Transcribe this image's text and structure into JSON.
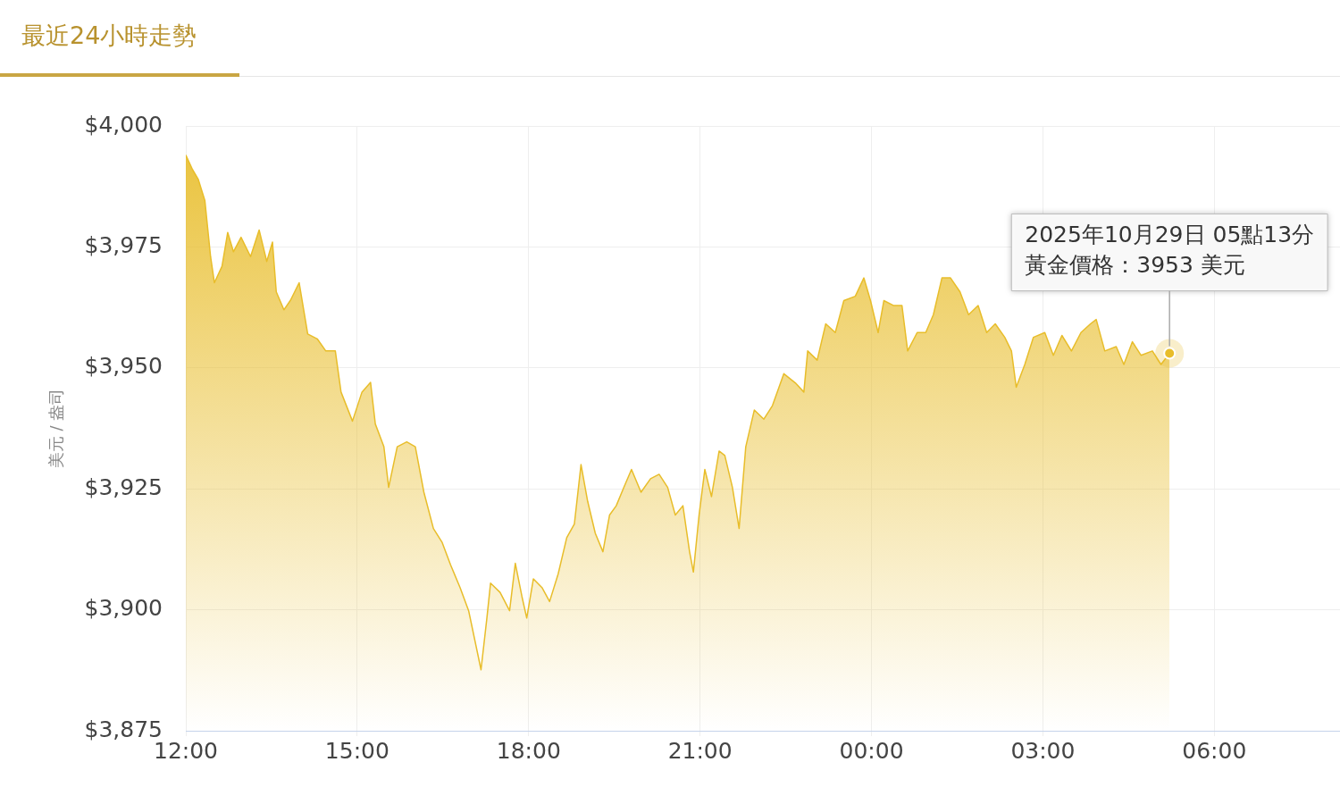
{
  "chart_data": {
    "type": "area",
    "title": "最近24小時走勢",
    "ylabel": "美元 / 盎司",
    "color": "#e8bd2a",
    "grid": true,
    "xlim": [
      "2025-10-28T12:00",
      "2025-10-29T08:12"
    ],
    "xticks": [
      {
        "value": "2025-10-28T12:00",
        "label": "12:00"
      },
      {
        "value": "2025-10-28T15:00",
        "label": "15:00"
      },
      {
        "value": "2025-10-28T18:00",
        "label": "18:00"
      },
      {
        "value": "2025-10-28T21:00",
        "label": "21:00"
      },
      {
        "value": "2025-10-29T00:00",
        "label": "00:00"
      },
      {
        "value": "2025-10-29T03:00",
        "label": "03:00"
      },
      {
        "value": "2025-10-29T06:00",
        "label": "06:00"
      }
    ],
    "ylim": [
      3875,
      4000
    ],
    "yticks": [
      {
        "value": 3875,
        "label": "$3,875"
      },
      {
        "value": 3900,
        "label": "$3,900"
      },
      {
        "value": 3925,
        "label": "$3,925"
      },
      {
        "value": 3950,
        "label": "$3,950"
      },
      {
        "value": 3975,
        "label": "$3,975"
      },
      {
        "value": 4000,
        "label": "$4,000"
      }
    ],
    "x": [
      "2025-10-28T12:00",
      "2025-10-28T12:07",
      "2025-10-28T12:13",
      "2025-10-28T12:20",
      "2025-10-28T12:26",
      "2025-10-28T12:30",
      "2025-10-28T12:38",
      "2025-10-28T12:44",
      "2025-10-28T12:50",
      "2025-10-28T12:58",
      "2025-10-28T13:08",
      "2025-10-28T13:17",
      "2025-10-28T13:25",
      "2025-10-28T13:31",
      "2025-10-28T13:35",
      "2025-10-28T13:43",
      "2025-10-28T13:50",
      "2025-10-28T13:59",
      "2025-10-28T14:08",
      "2025-10-28T14:18",
      "2025-10-28T14:27",
      "2025-10-28T14:37",
      "2025-10-28T14:43",
      "2025-10-28T14:55",
      "2025-10-28T15:05",
      "2025-10-28T15:14",
      "2025-10-28T15:19",
      "2025-10-28T15:28",
      "2025-10-28T15:33",
      "2025-10-28T15:42",
      "2025-10-28T15:52",
      "2025-10-28T16:01",
      "2025-10-28T16:10",
      "2025-10-28T16:20",
      "2025-10-28T16:29",
      "2025-10-28T16:38",
      "2025-10-28T16:48",
      "2025-10-28T16:57",
      "2025-10-28T17:10",
      "2025-10-28T17:16",
      "2025-10-28T17:20",
      "2025-10-28T17:30",
      "2025-10-28T17:40",
      "2025-10-28T17:46",
      "2025-10-28T17:53",
      "2025-10-28T17:58",
      "2025-10-28T18:05",
      "2025-10-28T18:14",
      "2025-10-28T18:22",
      "2025-10-28T18:31",
      "2025-10-28T18:40",
      "2025-10-28T18:48",
      "2025-10-28T18:55",
      "2025-10-28T19:02",
      "2025-10-28T19:10",
      "2025-10-28T19:18",
      "2025-10-28T19:25",
      "2025-10-28T19:32",
      "2025-10-28T19:40",
      "2025-10-28T19:48",
      "2025-10-28T19:58",
      "2025-10-28T20:08",
      "2025-10-28T20:17",
      "2025-10-28T20:26",
      "2025-10-28T20:34",
      "2025-10-28T20:42",
      "2025-10-28T20:49",
      "2025-10-28T20:53",
      "2025-10-28T20:59",
      "2025-10-28T21:05",
      "2025-10-28T21:12",
      "2025-10-28T21:20",
      "2025-10-28T21:26",
      "2025-10-28T21:34",
      "2025-10-28T21:41",
      "2025-10-28T21:48",
      "2025-10-28T21:57",
      "2025-10-28T22:07",
      "2025-10-28T22:16",
      "2025-10-28T22:28",
      "2025-10-28T22:40",
      "2025-10-28T22:49",
      "2025-10-28T22:53",
      "2025-10-28T23:03",
      "2025-10-28T23:12",
      "2025-10-28T23:22",
      "2025-10-28T23:31",
      "2025-10-28T23:43",
      "2025-10-28T23:52",
      "2025-10-28T23:59",
      "2025-10-29T00:07",
      "2025-10-29T00:13",
      "2025-10-29T00:23",
      "2025-10-29T00:32",
      "2025-10-29T00:38",
      "2025-10-29T00:48",
      "2025-10-29T00:57",
      "2025-10-29T01:05",
      "2025-10-29T01:14",
      "2025-10-29T01:23",
      "2025-10-29T01:33",
      "2025-10-29T01:42",
      "2025-10-29T01:52",
      "2025-10-29T02:01",
      "2025-10-29T02:10",
      "2025-10-29T02:20",
      "2025-10-29T02:27",
      "2025-10-29T02:32",
      "2025-10-29T02:41",
      "2025-10-29T02:50",
      "2025-10-29T03:02",
      "2025-10-29T03:11",
      "2025-10-29T03:20",
      "2025-10-29T03:30",
      "2025-10-29T03:40",
      "2025-10-29T03:50",
      "2025-10-29T03:56",
      "2025-10-29T04:05",
      "2025-10-29T04:17",
      "2025-10-29T04:25",
      "2025-10-29T04:34",
      "2025-10-29T04:43",
      "2025-10-29T04:55",
      "2025-10-29T05:04",
      "2025-10-29T05:13"
    ],
    "values": [
      3994,
      3991,
      3989,
      3984.6,
      3973,
      3967.6,
      3971,
      3978,
      3974,
      3977,
      3973,
      3978.5,
      3972,
      3976,
      3965.7,
      3962,
      3964,
      3967.6,
      3957,
      3956,
      3953.5,
      3953.5,
      3945,
      3939,
      3945,
      3947,
      3938.4,
      3933.7,
      3925.3,
      3933.7,
      3934.7,
      3933.7,
      3924.3,
      3916.8,
      3914,
      3909.3,
      3904.6,
      3899.8,
      3887.6,
      3898,
      3905.5,
      3903.6,
      3899.8,
      3909.6,
      3902.7,
      3898.3,
      3906.4,
      3904.6,
      3901.7,
      3907.4,
      3914.9,
      3917.7,
      3930,
      3922.4,
      3915.8,
      3912,
      3919.6,
      3921.5,
      3925.3,
      3929,
      3924.3,
      3927.1,
      3928,
      3925.3,
      3919.6,
      3921.5,
      3912,
      3907.8,
      3919.6,
      3929,
      3923.4,
      3932.8,
      3931.9,
      3925.3,
      3916.8,
      3933.7,
      3941.3,
      3939.4,
      3942.2,
      3948.8,
      3946.9,
      3945,
      3953.5,
      3951.6,
      3959.1,
      3957.3,
      3963.9,
      3964.8,
      3968.6,
      3963.9,
      3957.3,
      3963.9,
      3962.9,
      3962.9,
      3953.5,
      3957.3,
      3957.3,
      3961,
      3968.6,
      3968.6,
      3965.7,
      3961,
      3962.9,
      3957.3,
      3959.1,
      3956.3,
      3953.5,
      3946,
      3950.7,
      3956.3,
      3957.3,
      3952.6,
      3956.7,
      3953.5,
      3957.3,
      3959.1,
      3960,
      3953.5,
      3954.4,
      3950.7,
      3955.4,
      3952.6,
      3953.5,
      3950.7,
      3953
    ],
    "annotations": [
      "2025年10月29日 05點13分",
      {
        "text": "黃金價格：3953 美元",
        "x": "2025-10-29T05:13",
        "y": 3953
      }
    ]
  }
}
